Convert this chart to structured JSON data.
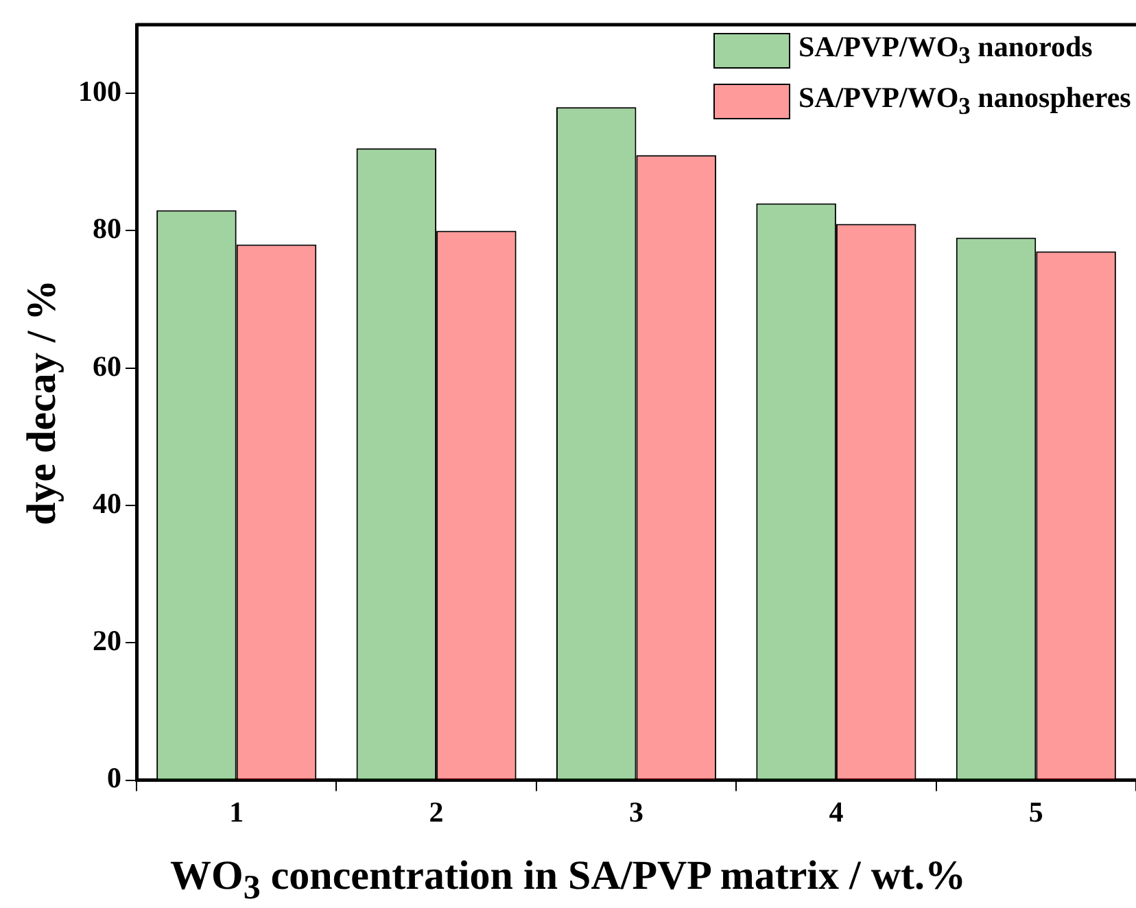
{
  "chart_data": {
    "type": "bar",
    "xlabel": "WO$_{3}$ concentration in SA/PVP matrix / wt.%",
    "ylabel": "dye decay / %",
    "categories": [
      "1",
      "2",
      "3",
      "4",
      "5"
    ],
    "series": [
      {
        "name": "SA/PVP/WO$_{3}$ nanorods",
        "color": "#2e9e2e",
        "values": [
          83,
          92,
          98,
          84,
          79
        ]
      },
      {
        "name": "SA/PVP/WO$_{3}$ nanospheres",
        "color": "#ff2020",
        "values": [
          78,
          80,
          91,
          81,
          77
        ]
      }
    ],
    "ylim": [
      0,
      110
    ],
    "yticks": [
      0,
      20,
      40,
      60,
      80,
      100
    ],
    "grid": false,
    "legend": "top right"
  }
}
